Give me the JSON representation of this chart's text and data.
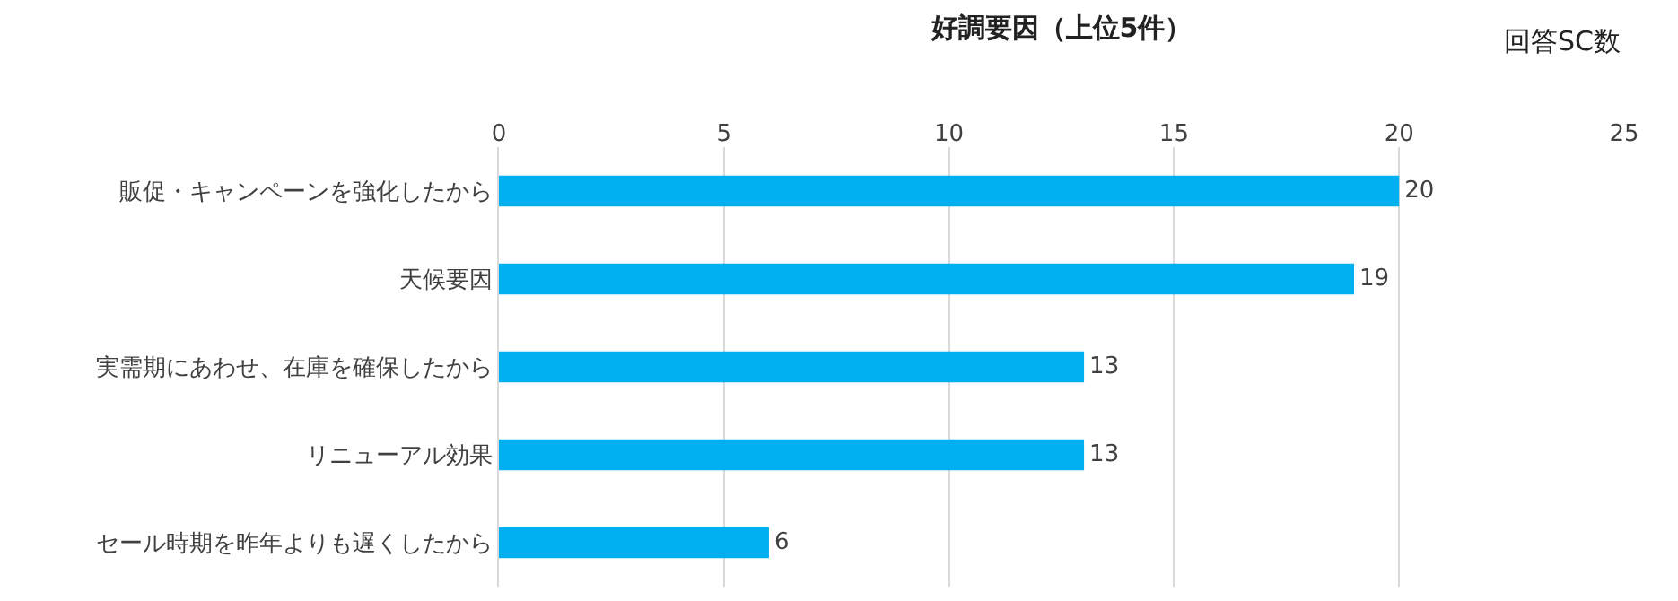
{
  "chart_data": {
    "type": "bar",
    "orientation": "horizontal",
    "title": "好調要因（上位5件）",
    "xlabel": "回答SC数",
    "categories": [
      "販促・キャンペーンを強化したから",
      "天候要因",
      "実需期にあわせ、在庫を確保したから",
      "リニューアル効果",
      "セール時期を昨年よりも遅くしたから"
    ],
    "values": [
      20,
      19,
      13,
      13,
      6
    ],
    "color": "#00b0f0",
    "data_labels": true,
    "xlim": [
      0,
      25
    ],
    "xticks": [
      0,
      5,
      10,
      15,
      20,
      25
    ],
    "grid": "x"
  }
}
